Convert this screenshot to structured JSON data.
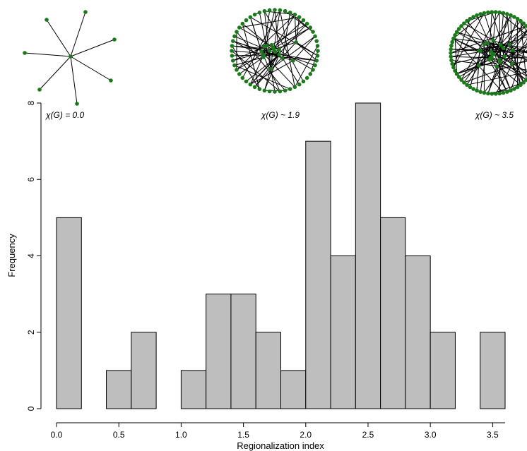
{
  "chart_data": {
    "type": "bar",
    "title": "",
    "xlabel": "Regionalization index",
    "ylabel": "Frequency",
    "bin_edges": [
      0.0,
      0.2,
      0.4,
      0.6,
      0.8,
      1.0,
      1.2,
      1.4,
      1.6,
      1.8,
      2.0,
      2.2,
      2.4,
      2.6,
      2.8,
      3.0,
      3.2,
      3.4,
      3.6
    ],
    "values": [
      5,
      0,
      1,
      2,
      0,
      1,
      3,
      3,
      2,
      1,
      7,
      4,
      8,
      5,
      4,
      2,
      0,
      2
    ],
    "xlim": [
      0.0,
      3.6
    ],
    "ylim": [
      0,
      8
    ],
    "x_ticks": [
      "0.0",
      "0.5",
      "1.0",
      "1.5",
      "2.0",
      "2.5",
      "3.0",
      "3.5"
    ],
    "x_tick_values": [
      0.0,
      0.5,
      1.0,
      1.5,
      2.0,
      2.5,
      3.0,
      3.5
    ],
    "y_ticks": [
      "0",
      "2",
      "4",
      "6",
      "8"
    ],
    "y_tick_values": [
      0,
      2,
      4,
      6,
      8
    ],
    "grid": false,
    "bar_color": "#bebebe",
    "node_color": "#1a7a1a",
    "insets": [
      {
        "label": "χ(G) = 0.0",
        "layout": "star",
        "nodes": 8
      },
      {
        "label": "χ(G) ~ 1.9",
        "layout": "circle",
        "nodes": 52
      },
      {
        "label": "χ(G) ~ 3.5",
        "layout": "circle",
        "nodes": 70
      }
    ]
  }
}
